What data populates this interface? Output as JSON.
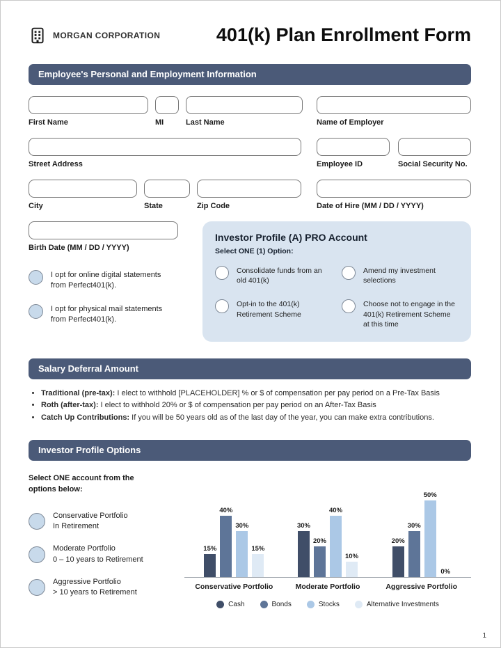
{
  "header": {
    "company": "MORGAN CORPORATION",
    "title": "401(k) Plan Enrollment Form"
  },
  "sections": {
    "personal": "Employee's Personal and Employment Information",
    "salary": "Salary Deferral Amount",
    "investor": "Investor Profile Options"
  },
  "labels": {
    "first_name": "First Name",
    "mi": "MI",
    "last_name": "Last Name",
    "employer": "Name of Employer",
    "street": "Street Address",
    "employee_id": "Employee ID",
    "ssn": "Social Security No.",
    "city": "City",
    "state": "State",
    "zip": "Zip Code",
    "hire_date": "Date of Hire (MM / DD / YYYY)",
    "birth_date": "Birth Date (MM / DD / YYYY)"
  },
  "statement_options": [
    {
      "text": "I opt for online digital statements from Perfect401(k)."
    },
    {
      "text": "I opt for physical mail statements from Perfect401(k)."
    }
  ],
  "investor_profile_panel": {
    "title": "Investor Profile (A) PRO Account",
    "subtitle": "Select ONE (1) Option:",
    "options": [
      {
        "text": "Consolidate funds from an old 401(k)"
      },
      {
        "text": "Amend my investment selections"
      },
      {
        "text": "Opt-in to the 401(k) Retirement Scheme"
      },
      {
        "text": "Choose not to engage in the 401(k) Retirement Scheme at this time"
      }
    ]
  },
  "salary_deferral": {
    "bullets": [
      {
        "lead": "Traditional (pre-tax):",
        "rest": " I elect to withhold [PLACEHOLDER] % or $ of compensation per pay period on a Pre-Tax Basis"
      },
      {
        "lead": "Roth (after-tax):",
        "rest": " I elect to withhold 20% or $ of compensation per pay period on an After-Tax Basis"
      },
      {
        "lead": "Catch Up Contributions:",
        "rest": " If you will be 50 years old as of the last day of the year, you can make extra contributions."
      }
    ]
  },
  "investor_options": {
    "prompt": "Select ONE account from the options below:",
    "options": [
      {
        "line1": "Conservative Portfolio",
        "line2": "In Retirement"
      },
      {
        "line1": "Moderate Portfolio",
        "line2": "0 – 10 years to Retirement"
      },
      {
        "line1": "Aggressive Portfolio",
        "line2": "> 10 years to Retirement"
      }
    ]
  },
  "chart_data": {
    "type": "bar",
    "categories": [
      "Conservative Portfolio",
      "Moderate Portfolio",
      "Aggressive Portfolio"
    ],
    "series": [
      {
        "name": "Cash",
        "color": "#404e68",
        "values": [
          15,
          30,
          20
        ]
      },
      {
        "name": "Bonds",
        "color": "#5e7598",
        "values": [
          40,
          20,
          30
        ]
      },
      {
        "name": "Stocks",
        "color": "#abc8e6",
        "values": [
          30,
          40,
          50
        ]
      },
      {
        "name": "Alternative Investments",
        "color": "#dfeaf5",
        "values": [
          15,
          10,
          0
        ]
      }
    ],
    "value_suffix": "%",
    "ylim": [
      0,
      55
    ],
    "grid": false,
    "legend_position": "bottom"
  },
  "page_number": "1",
  "colors": {
    "section_bar": "#4b5a78",
    "panel_bg": "#d9e4f0",
    "radio_fill": "#c8daeb"
  }
}
